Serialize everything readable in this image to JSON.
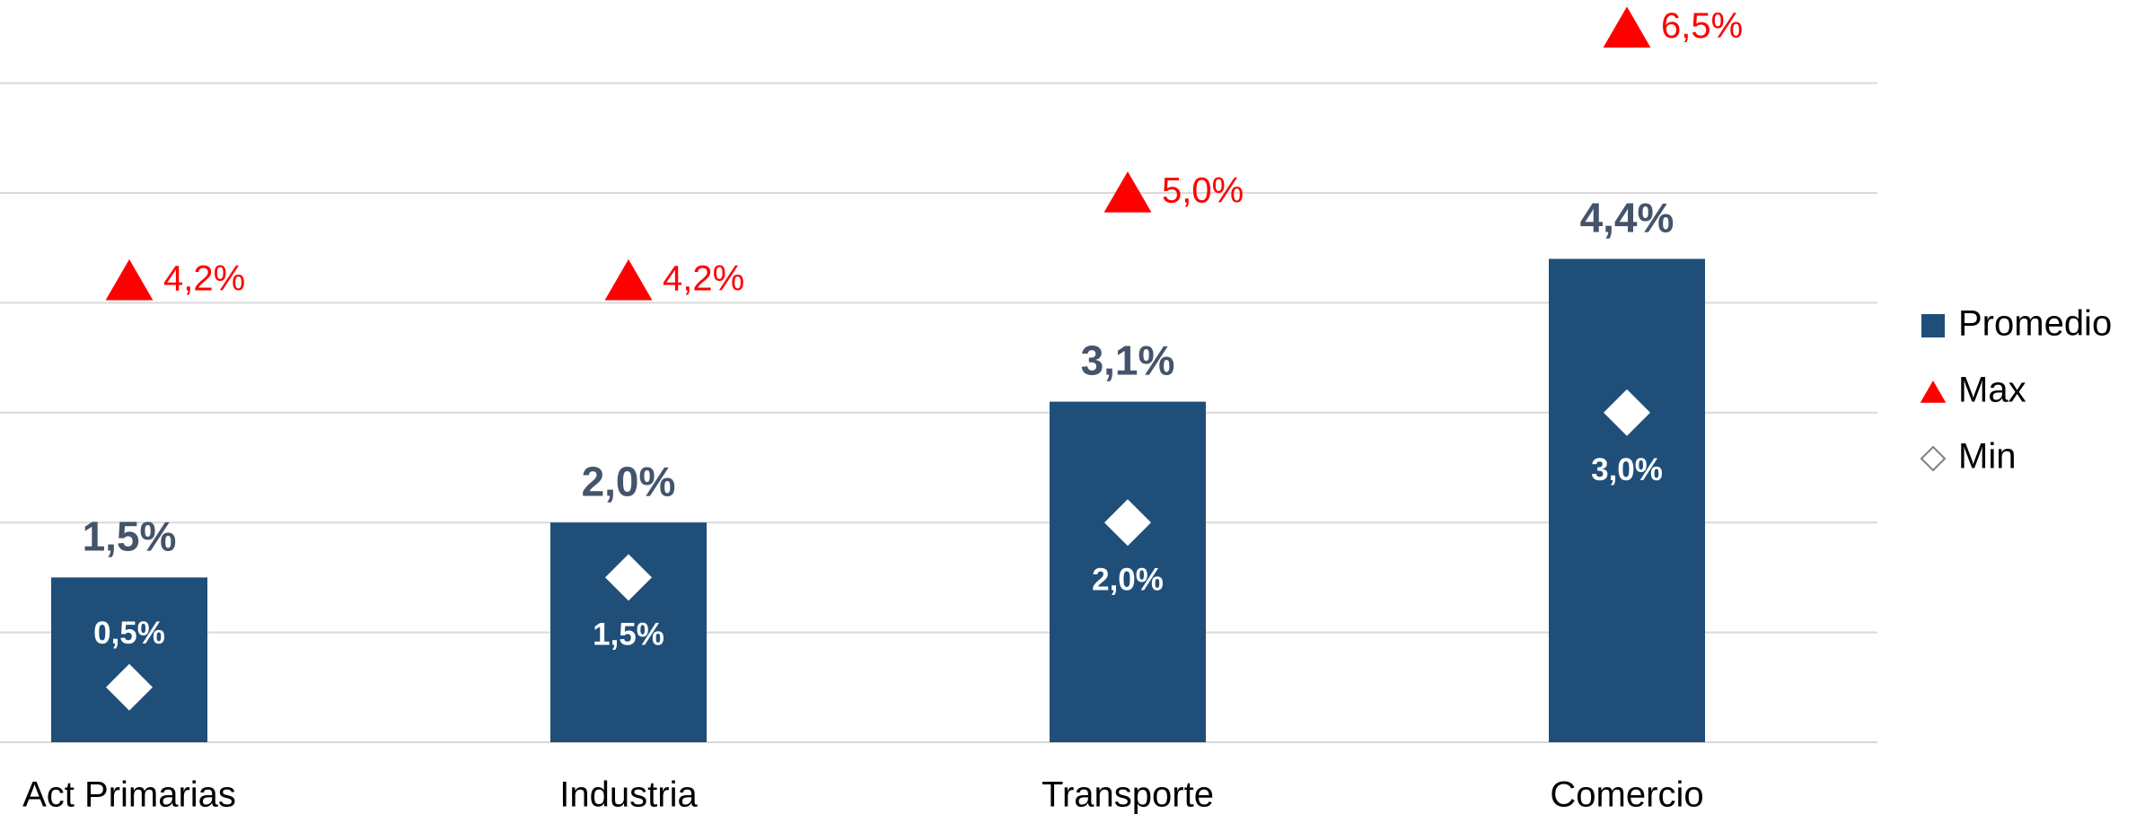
{
  "chart_data": {
    "type": "bar",
    "categories": [
      "Act Primarias",
      "Industria",
      "Transporte",
      "Comercio"
    ],
    "series": [
      {
        "name": "Promedio",
        "type": "bar",
        "color": "#1f4e79",
        "values": [
          1.5,
          2.0,
          3.1,
          4.4
        ],
        "value_labels": [
          "1,5%",
          "2,0%",
          "3,1%",
          "4,4%"
        ]
      },
      {
        "name": "Max",
        "type": "triangle",
        "color": "#ff0000",
        "values": [
          4.2,
          4.2,
          5.0,
          6.5
        ],
        "value_labels": [
          "4,2%",
          "4,2%",
          "5,0%",
          "6,5%"
        ]
      },
      {
        "name": "Min",
        "type": "diamond",
        "color": "#ffffff",
        "values": [
          0.5,
          1.5,
          2.0,
          3.0
        ],
        "value_labels": [
          "0,5%",
          "1,5%",
          "2,0%",
          "3,0%"
        ]
      }
    ],
    "ylim": [
      0,
      7
    ],
    "yticks": [
      0,
      1,
      2,
      3,
      4,
      5,
      6
    ],
    "grid": true,
    "legend": "right"
  }
}
